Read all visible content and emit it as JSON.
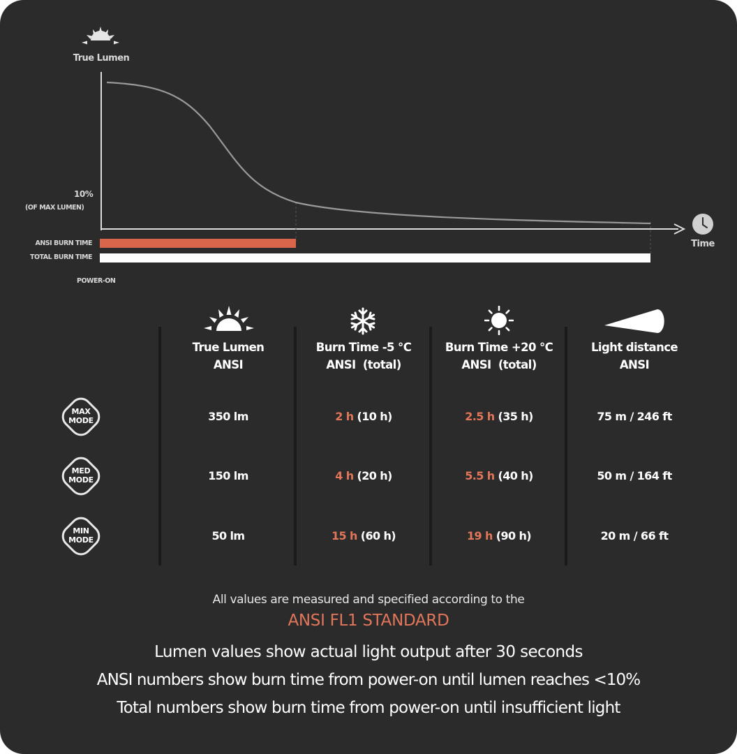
{
  "chart": {
    "y_axis_label": "True Lumen",
    "threshold_label": "10%",
    "threshold_sublabel": "(OF MAX LUMEN)",
    "x_axis_label": "Time",
    "ansi_bar_label": "ANSI BURN TIME",
    "total_bar_label": "TOTAL BURN TIME",
    "origin_label": "POWER-ON",
    "colors": {
      "ansi_bar": "#d9664a",
      "total_bar": "#ffffff",
      "curve": "#9a9a9a",
      "axis": "#dddddd"
    },
    "icons": {
      "y_axis": "sun-rising-icon",
      "x_axis": "clock-icon"
    }
  },
  "table": {
    "columns": [
      {
        "icon": "sun-rising-icon",
        "line1": "True Lumen",
        "line2": "ANSI"
      },
      {
        "icon": "snowflake-icon",
        "line1": "Burn Time -5 °C",
        "line2": "ANSI  (total)"
      },
      {
        "icon": "sun-icon",
        "line1": "Burn Time +20 °C",
        "line2": "ANSI  (total)"
      },
      {
        "icon": "beam-icon",
        "line1": "Light distance",
        "line2": "ANSI"
      }
    ],
    "rows": [
      {
        "mode_line1": "MAX",
        "mode_line2": "MODE",
        "lumen": "350 lm",
        "cold_ansi": "2 h",
        "cold_total": "(10 h)",
        "warm_ansi": "2.5 h",
        "warm_total": "(35 h)",
        "distance": "75 m / 246 ft"
      },
      {
        "mode_line1": "MED",
        "mode_line2": "MODE",
        "lumen": "150 lm",
        "cold_ansi": "4 h",
        "cold_total": "(20 h)",
        "warm_ansi": "5.5 h",
        "warm_total": "(40 h)",
        "distance": "50 m / 164 ft"
      },
      {
        "mode_line1": "MIN",
        "mode_line2": "MODE",
        "lumen": "50 lm",
        "cold_ansi": "15 h",
        "cold_total": "(60 h)",
        "warm_ansi": "19 h",
        "warm_total": "(90 h)",
        "distance": "20 m / 66 ft"
      }
    ]
  },
  "footer": {
    "intro": "All values are measured and specified according to the",
    "standard": "ANSI FL1 STANDARD",
    "notes": [
      "Lumen values show actual light output after 30 seconds",
      "ANSI numbers show burn time from power-on until lumen reaches <10%",
      "Total numbers show burn time from power-on until insufficient light"
    ]
  },
  "theme": {
    "background": "#2b2b2b",
    "accent": "#e2765a"
  }
}
